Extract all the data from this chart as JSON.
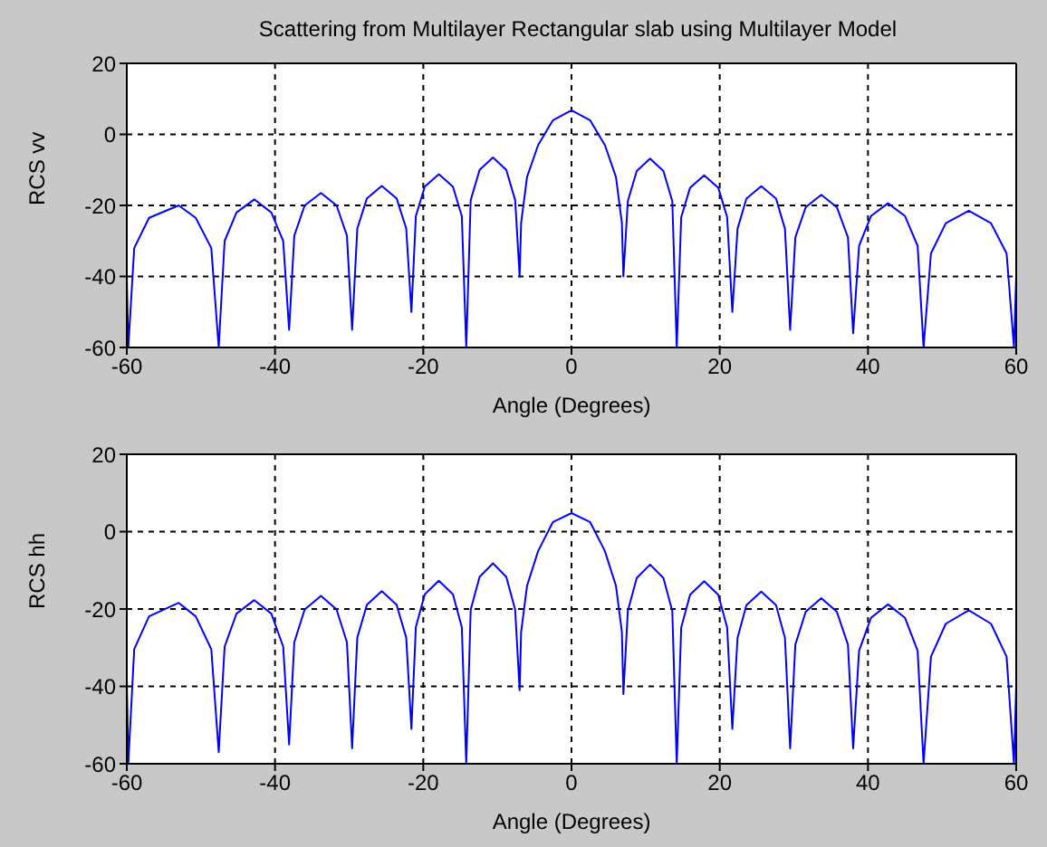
{
  "chart_data": [
    {
      "type": "line",
      "title": "Scattering from Multilayer Rectangular slab using Multilayer Model",
      "xlabel": "Angle (Degrees)",
      "ylabel": "RCS vv",
      "xlim": [
        -60,
        60
      ],
      "xticks": [
        -60,
        -40,
        -20,
        0,
        20,
        40,
        60
      ],
      "ylim": [
        -60,
        20
      ],
      "yticks": [
        -60,
        -40,
        -20,
        0,
        20
      ],
      "grid": true,
      "series": [
        {
          "color": "#0000ff",
          "x": [
            -60,
            -59.8,
            -59,
            -57,
            -53,
            -50.7,
            -48.6,
            -47.6,
            -46.8,
            -45.2,
            -42.8,
            -40.5,
            -38.9,
            -38.1,
            -37.4,
            -36,
            -33.8,
            -31.7,
            -30.3,
            -29.6,
            -28.9,
            -27.6,
            -25.6,
            -23.6,
            -22.3,
            -21.6,
            -21,
            -19.8,
            -17.9,
            -16,
            -14.8,
            -14.2,
            -13.6,
            -12.4,
            -10.6,
            -8.8,
            -7.6,
            -7,
            -6.8,
            -6,
            -4.5,
            -2.5,
            0,
            2.5,
            4.5,
            6,
            6.8,
            7,
            7.6,
            8.8,
            10.6,
            12.4,
            13.6,
            14.2,
            14.8,
            16,
            17.9,
            19.8,
            21,
            21.7,
            22.4,
            23.6,
            25.6,
            27.6,
            28.8,
            29.5,
            30.2,
            31.6,
            33.7,
            35.8,
            37.3,
            38,
            38.8,
            40.4,
            42.7,
            45,
            46.7,
            47.5,
            48.5,
            50.5,
            53.6,
            56.6,
            58.7,
            59.7,
            60
          ],
          "values": [
            -40,
            -60,
            -32,
            -23.5,
            -20,
            -23.5,
            -32,
            -60,
            -30,
            -22,
            -18.3,
            -22,
            -30,
            -55,
            -28.5,
            -20,
            -16.5,
            -20,
            -28.5,
            -55,
            -26.5,
            -18,
            -14.5,
            -18,
            -26.5,
            -50,
            -23,
            -14.7,
            -11.2,
            -14.7,
            -23,
            -60,
            -18.5,
            -10,
            -6.5,
            -10,
            -18.5,
            -40,
            -25,
            -12,
            -3,
            4,
            6.8,
            4,
            -3,
            -12,
            -25,
            -40,
            -18.8,
            -10.3,
            -6.8,
            -10.3,
            -18.8,
            -60,
            -23.3,
            -15,
            -11.5,
            -15,
            -23.3,
            -50,
            -26.6,
            -18.1,
            -14.6,
            -18.1,
            -26.6,
            -55,
            -29,
            -20.5,
            -17,
            -20.5,
            -29,
            -56,
            -31.4,
            -23,
            -19.4,
            -23,
            -31.4,
            -60,
            -33.5,
            -25,
            -21.5,
            -25,
            -33.5,
            -60,
            -40
          ]
        }
      ]
    },
    {
      "type": "line",
      "xlabel": "Angle (Degrees)",
      "ylabel": "RCS hh",
      "xlim": [
        -60,
        60
      ],
      "xticks": [
        -60,
        -40,
        -20,
        0,
        20,
        40,
        60
      ],
      "ylim": [
        -60,
        20
      ],
      "yticks": [
        -60,
        -40,
        -20,
        0,
        20
      ],
      "grid": true,
      "series": [
        {
          "color": "#0000ff",
          "x": [
            -60,
            -59.8,
            -59,
            -57,
            -53,
            -50.7,
            -48.6,
            -47.6,
            -46.8,
            -45.2,
            -42.8,
            -40.5,
            -38.9,
            -38.1,
            -37.4,
            -36,
            -33.8,
            -31.7,
            -30.3,
            -29.6,
            -28.9,
            -27.6,
            -25.6,
            -23.6,
            -22.3,
            -21.6,
            -21,
            -19.8,
            -17.9,
            -16,
            -14.8,
            -14.2,
            -13.6,
            -12.4,
            -10.6,
            -8.8,
            -7.6,
            -7,
            -6.8,
            -6,
            -4.5,
            -2.5,
            0,
            2.5,
            4.5,
            6,
            6.8,
            7,
            7.6,
            8.8,
            10.6,
            12.4,
            13.6,
            14.2,
            14.8,
            16,
            17.9,
            19.8,
            21,
            21.7,
            22.4,
            23.6,
            25.6,
            27.6,
            28.8,
            29.5,
            30.2,
            31.6,
            33.7,
            35.8,
            37.3,
            38,
            38.8,
            40.4,
            42.7,
            45,
            46.7,
            47.5,
            48.5,
            50.5,
            53.6,
            56.6,
            58.7,
            59.7,
            60
          ],
          "values": [
            -38,
            -60,
            -30.4,
            -21.9,
            -18.4,
            -21.9,
            -30.4,
            -57,
            -29.7,
            -21.2,
            -17.7,
            -21.2,
            -29.7,
            -55,
            -28.6,
            -20.1,
            -16.6,
            -20.1,
            -28.6,
            -56,
            -27.4,
            -18.9,
            -15.4,
            -18.9,
            -27.4,
            -51,
            -24.7,
            -16.2,
            -12.7,
            -16.2,
            -24.7,
            -60,
            -20.2,
            -11.7,
            -8.2,
            -11.7,
            -20.2,
            -41,
            -26,
            -14,
            -5,
            2.5,
            4.8,
            2.5,
            -5,
            -14,
            -26,
            -42,
            -20.5,
            -12,
            -8.5,
            -12,
            -20.5,
            -60,
            -24.8,
            -16.3,
            -12.8,
            -16.3,
            -24.8,
            -51,
            -27.5,
            -19,
            -15.5,
            -19,
            -27.5,
            -56,
            -29.2,
            -20.7,
            -17.2,
            -20.7,
            -29.2,
            -56,
            -30.8,
            -22.3,
            -18.8,
            -22.3,
            -30.8,
            -60,
            -32.3,
            -23.8,
            -20.3,
            -23.8,
            -32.3,
            -60,
            -40
          ]
        }
      ]
    }
  ]
}
